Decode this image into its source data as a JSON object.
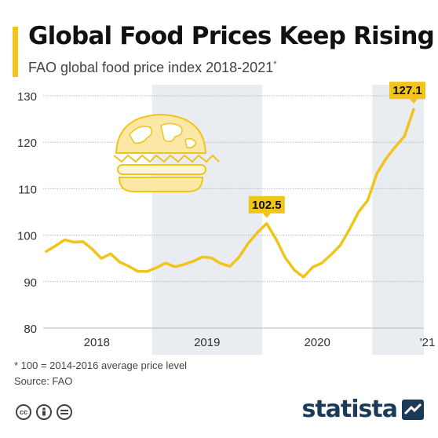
{
  "header": {
    "title": "Global Food Prices Keep Rising",
    "subtitle": "FAO global food price index 2018-2021",
    "subtitle_mark": "*"
  },
  "footer": {
    "note": "* 100 = 2014-2016 average price level",
    "source": "Source: FAO",
    "brand": "statista"
  },
  "colors": {
    "line": "#f0c419",
    "accent": "#f0c419",
    "shading": "#e9ecf0",
    "grid": "#b9b9b9",
    "brand": "#1b3a57"
  },
  "icons": [
    "creative-commons-icon",
    "attribution-icon",
    "no-derivatives-icon",
    "statista-logo-icon",
    "globe-burger-icon"
  ],
  "chart_data": {
    "type": "line",
    "title": "Global Food Prices Keep Rising",
    "subtitle": "FAO global food price index 2018-2021*",
    "xlabel": "",
    "ylabel": "",
    "ylim": [
      80,
      130
    ],
    "yticks": [
      80,
      90,
      100,
      110,
      120,
      130
    ],
    "xticks": [
      {
        "label": "2018",
        "year": 2018
      },
      {
        "label": "2019",
        "year": 2019
      },
      {
        "label": "2020",
        "year": 2020
      },
      {
        "label": "'21",
        "year": 2021
      }
    ],
    "shaded_years": [
      2019,
      2021
    ],
    "grid": "horizontal",
    "series": [
      {
        "x": [
          "2018-01",
          "2018-02",
          "2018-03",
          "2018-04",
          "2018-05",
          "2018-06",
          "2018-07",
          "2018-08",
          "2018-09",
          "2018-10",
          "2018-11",
          "2018-12",
          "2019-01",
          "2019-02",
          "2019-03",
          "2019-04",
          "2019-05",
          "2019-06",
          "2019-07",
          "2019-08",
          "2019-09",
          "2019-10",
          "2019-11",
          "2019-12",
          "2020-01",
          "2020-02",
          "2020-03",
          "2020-04",
          "2020-05",
          "2020-06",
          "2020-07",
          "2020-08",
          "2020-09",
          "2020-10",
          "2020-11",
          "2020-12",
          "2021-01",
          "2021-02",
          "2021-03",
          "2021-04",
          "2021-05"
        ],
        "values": [
          96.5,
          97.7,
          99.0,
          98.5,
          98.6,
          97.0,
          95.0,
          96.0,
          94.2,
          93.3,
          92.2,
          92.2,
          93.0,
          94.0,
          93.2,
          93.7,
          94.4,
          95.3,
          95.1,
          93.9,
          93.3,
          95.3,
          98.3,
          100.6,
          102.5,
          99.2,
          95.2,
          92.5,
          91.0,
          93.1,
          94.0,
          95.8,
          97.8,
          101.2,
          105.0,
          107.5,
          113.3,
          116.5,
          119.0,
          121.3,
          127.1
        ]
      }
    ],
    "annotations": [
      {
        "x": "2020-01",
        "value": 102.5,
        "label": "102.5"
      },
      {
        "x": "2021-05",
        "value": 127.1,
        "label": "127.1"
      }
    ]
  }
}
